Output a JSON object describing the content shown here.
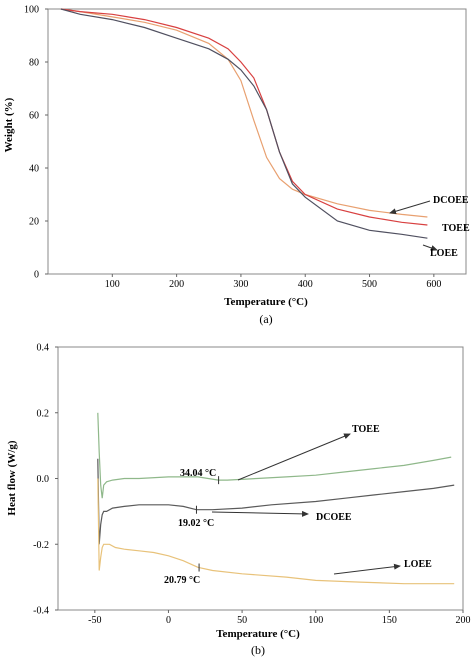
{
  "panels": {
    "a": {
      "label": "(a)"
    },
    "b": {
      "label": "(b)"
    }
  },
  "chart_data": [
    {
      "type": "line",
      "panel": "a",
      "title": "",
      "xlabel": "Temperature (°C)",
      "ylabel": "Weight (%)",
      "xlim": [
        0,
        650
      ],
      "ylim": [
        0,
        100
      ],
      "xticks": [
        100,
        200,
        300,
        400,
        500,
        600
      ],
      "yticks": [
        0,
        20,
        40,
        60,
        80,
        100
      ],
      "grid": false,
      "legend": "none",
      "series": [
        {
          "name": "DCOEE",
          "color": "#e8a070",
          "x": [
            20,
            50,
            100,
            150,
            200,
            250,
            280,
            300,
            320,
            340,
            360,
            380,
            400,
            450,
            500,
            550,
            590
          ],
          "y": [
            100,
            99,
            97,
            95,
            92,
            87,
            81,
            73,
            58,
            44,
            36,
            32,
            30,
            26.5,
            24,
            22.5,
            21.5
          ]
        },
        {
          "name": "TOEE",
          "color": "#d84040",
          "x": [
            20,
            50,
            100,
            150,
            200,
            250,
            280,
            300,
            320,
            340,
            360,
            380,
            400,
            450,
            500,
            550,
            590
          ],
          "y": [
            100,
            99,
            98,
            96,
            93,
            89,
            85,
            80,
            74,
            62,
            46,
            35,
            30,
            24.5,
            21.5,
            19.5,
            18.5
          ]
        },
        {
          "name": "LOEE",
          "color": "#505060",
          "x": [
            20,
            50,
            100,
            150,
            200,
            250,
            280,
            300,
            320,
            340,
            360,
            380,
            400,
            450,
            500,
            550,
            590
          ],
          "y": [
            100,
            98,
            96,
            93,
            89,
            85,
            81,
            77,
            71,
            62,
            46,
            34,
            29,
            20,
            16.5,
            15,
            13.5
          ]
        }
      ],
      "annotations": [
        {
          "text": "DCOEE",
          "series": "DCOEE"
        },
        {
          "text": "TOEE",
          "series": "TOEE"
        },
        {
          "text": "LOEE",
          "series": "LOEE"
        }
      ]
    },
    {
      "type": "line",
      "panel": "b",
      "title": "",
      "xlabel": "Temperature (°C)",
      "ylabel": "Heat flow (W/g)",
      "xlim": [
        -75,
        200
      ],
      "ylim": [
        -0.4,
        0.4
      ],
      "xticks": [
        -50,
        0,
        50,
        100,
        150,
        200
      ],
      "xtick_labels": [
        "-50",
        "0",
        "50",
        "100",
        "150",
        "200"
      ],
      "yticks": [
        0.4,
        0.2,
        0.0,
        -0.2,
        -0.4
      ],
      "ytick_labels": [
        "0.4",
        "0.2",
        "0.0",
        "-0.2",
        "-0.4"
      ],
      "grid": false,
      "legend": "none",
      "series": [
        {
          "name": "TOEE",
          "color": "#8fb88a",
          "x": [
            -48,
            -47,
            -46,
            -45,
            -44,
            -42,
            -38,
            -30,
            -20,
            0,
            20,
            34,
            40,
            60,
            80,
            100,
            120,
            140,
            160,
            180,
            192
          ],
          "y": [
            0.2,
            0.08,
            -0.02,
            -0.06,
            -0.02,
            -0.01,
            -0.005,
            0,
            0,
            0.005,
            0.005,
            -0.005,
            -0.005,
            0,
            0.005,
            0.01,
            0.02,
            0.03,
            0.04,
            0.055,
            0.065
          ]
        },
        {
          "name": "DCOEE",
          "color": "#5a5a5a",
          "x": [
            -48,
            -47,
            -46,
            -45,
            -44,
            -42,
            -38,
            -30,
            -20,
            0,
            10,
            19,
            30,
            50,
            70,
            100,
            120,
            140,
            160,
            180,
            194
          ],
          "y": [
            0.06,
            -0.2,
            -0.14,
            -0.11,
            -0.1,
            -0.1,
            -0.09,
            -0.085,
            -0.08,
            -0.08,
            -0.085,
            -0.095,
            -0.095,
            -0.09,
            -0.08,
            -0.07,
            -0.06,
            -0.05,
            -0.04,
            -0.03,
            -0.02
          ]
        },
        {
          "name": "LOEE",
          "color": "#e8c27a",
          "x": [
            -48,
            -47,
            -46,
            -45,
            -44,
            -42,
            -40,
            -36,
            -30,
            -20,
            -10,
            0,
            10,
            20,
            30,
            50,
            80,
            100,
            130,
            160,
            194
          ],
          "y": [
            0.0,
            -0.28,
            -0.24,
            -0.21,
            -0.2,
            -0.2,
            -0.2,
            -0.21,
            -0.215,
            -0.22,
            -0.225,
            -0.235,
            -0.25,
            -0.27,
            -0.28,
            -0.29,
            -0.3,
            -0.31,
            -0.315,
            -0.32,
            -0.32
          ]
        }
      ],
      "annotations": [
        {
          "text": "TOEE",
          "series": "TOEE"
        },
        {
          "text": "34.04 °C",
          "series": "TOEE",
          "x": 34.04
        },
        {
          "text": "DCOEE",
          "series": "DCOEE"
        },
        {
          "text": "19.02 °C",
          "series": "DCOEE",
          "x": 19.02
        },
        {
          "text": "LOEE",
          "series": "LOEE"
        },
        {
          "text": "20.79 °C",
          "series": "LOEE",
          "x": 20.79
        }
      ]
    }
  ]
}
